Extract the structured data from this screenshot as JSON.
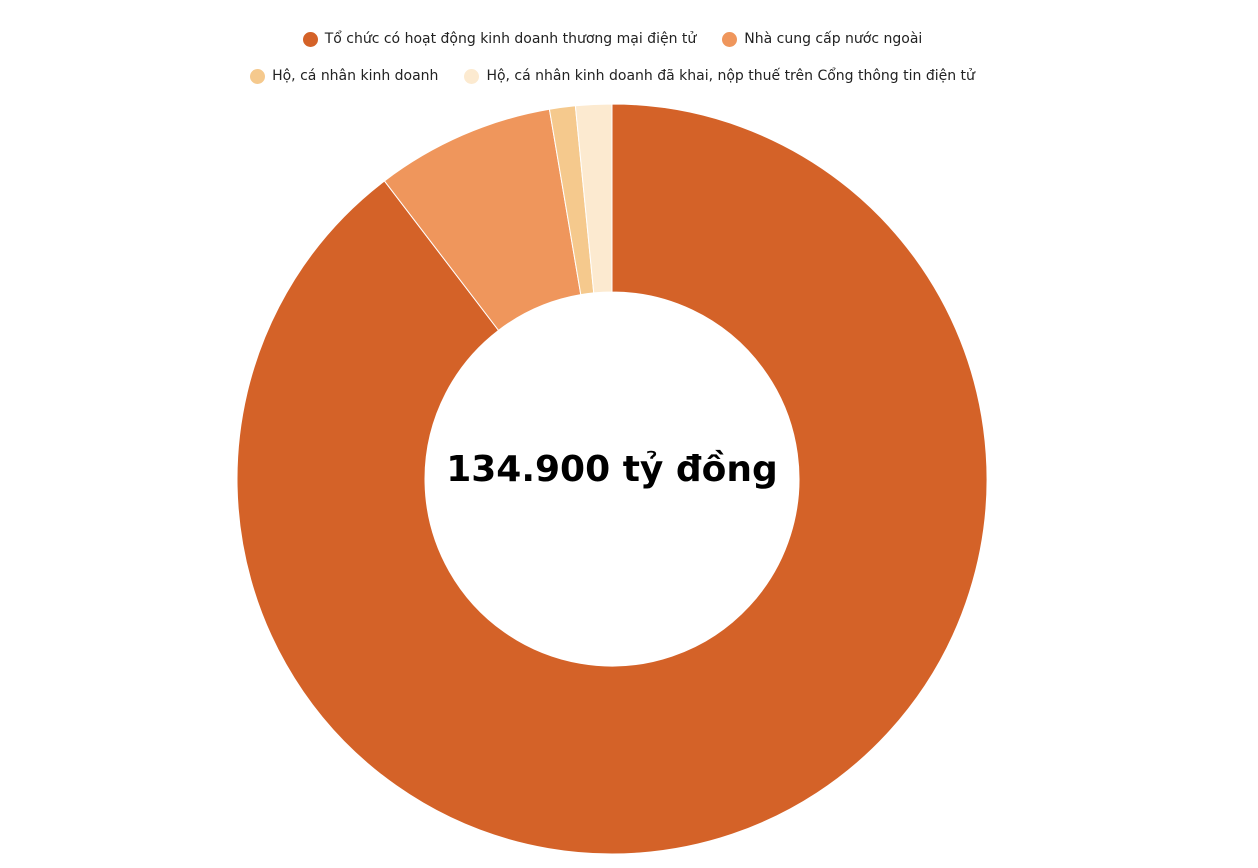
{
  "chart_data": {
    "type": "pie",
    "donut": true,
    "center_label": "134.900 tỷ đồng",
    "legend_position": "top",
    "series": [
      {
        "name": "Tổ chức có hoạt động kinh doanh thương mại điện tử",
        "value": 120900,
        "color": "#D46228"
      },
      {
        "name": "Nhà cung cấp nước ngoài",
        "value": 10400,
        "color": "#EF965C"
      },
      {
        "name": "Hộ, cá nhân kinh doanh",
        "value": 1500,
        "color": "#F5C98D"
      },
      {
        "name": "Hộ, cá nhân kinh doanh đã khai, nộp thuế trên Cổng thông tin điện tử",
        "value": 2100,
        "color": "#FCEAD0"
      }
    ]
  }
}
